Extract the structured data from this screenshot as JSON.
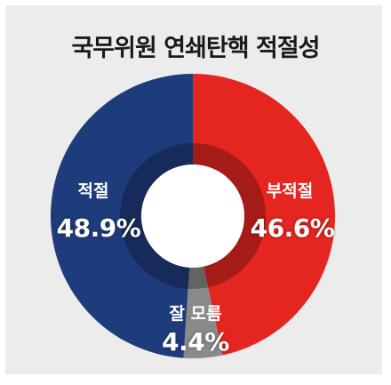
{
  "title": "국무위원 연쇄탄핵 적절성",
  "chart_data": {
    "type": "pie",
    "style": "donut",
    "title": "국무위원 연쇄탄핵 적절성",
    "slices": [
      {
        "label": "적절",
        "value": 48.9,
        "value_label": "48.9%",
        "color": "#1e3c7c"
      },
      {
        "label": "부적절",
        "value": 46.6,
        "value_label": "46.6%",
        "color": "#e52520"
      },
      {
        "label": "잘 모름",
        "value": 4.4,
        "value_label": "4.4%",
        "color": "#8a8a8a"
      }
    ]
  }
}
